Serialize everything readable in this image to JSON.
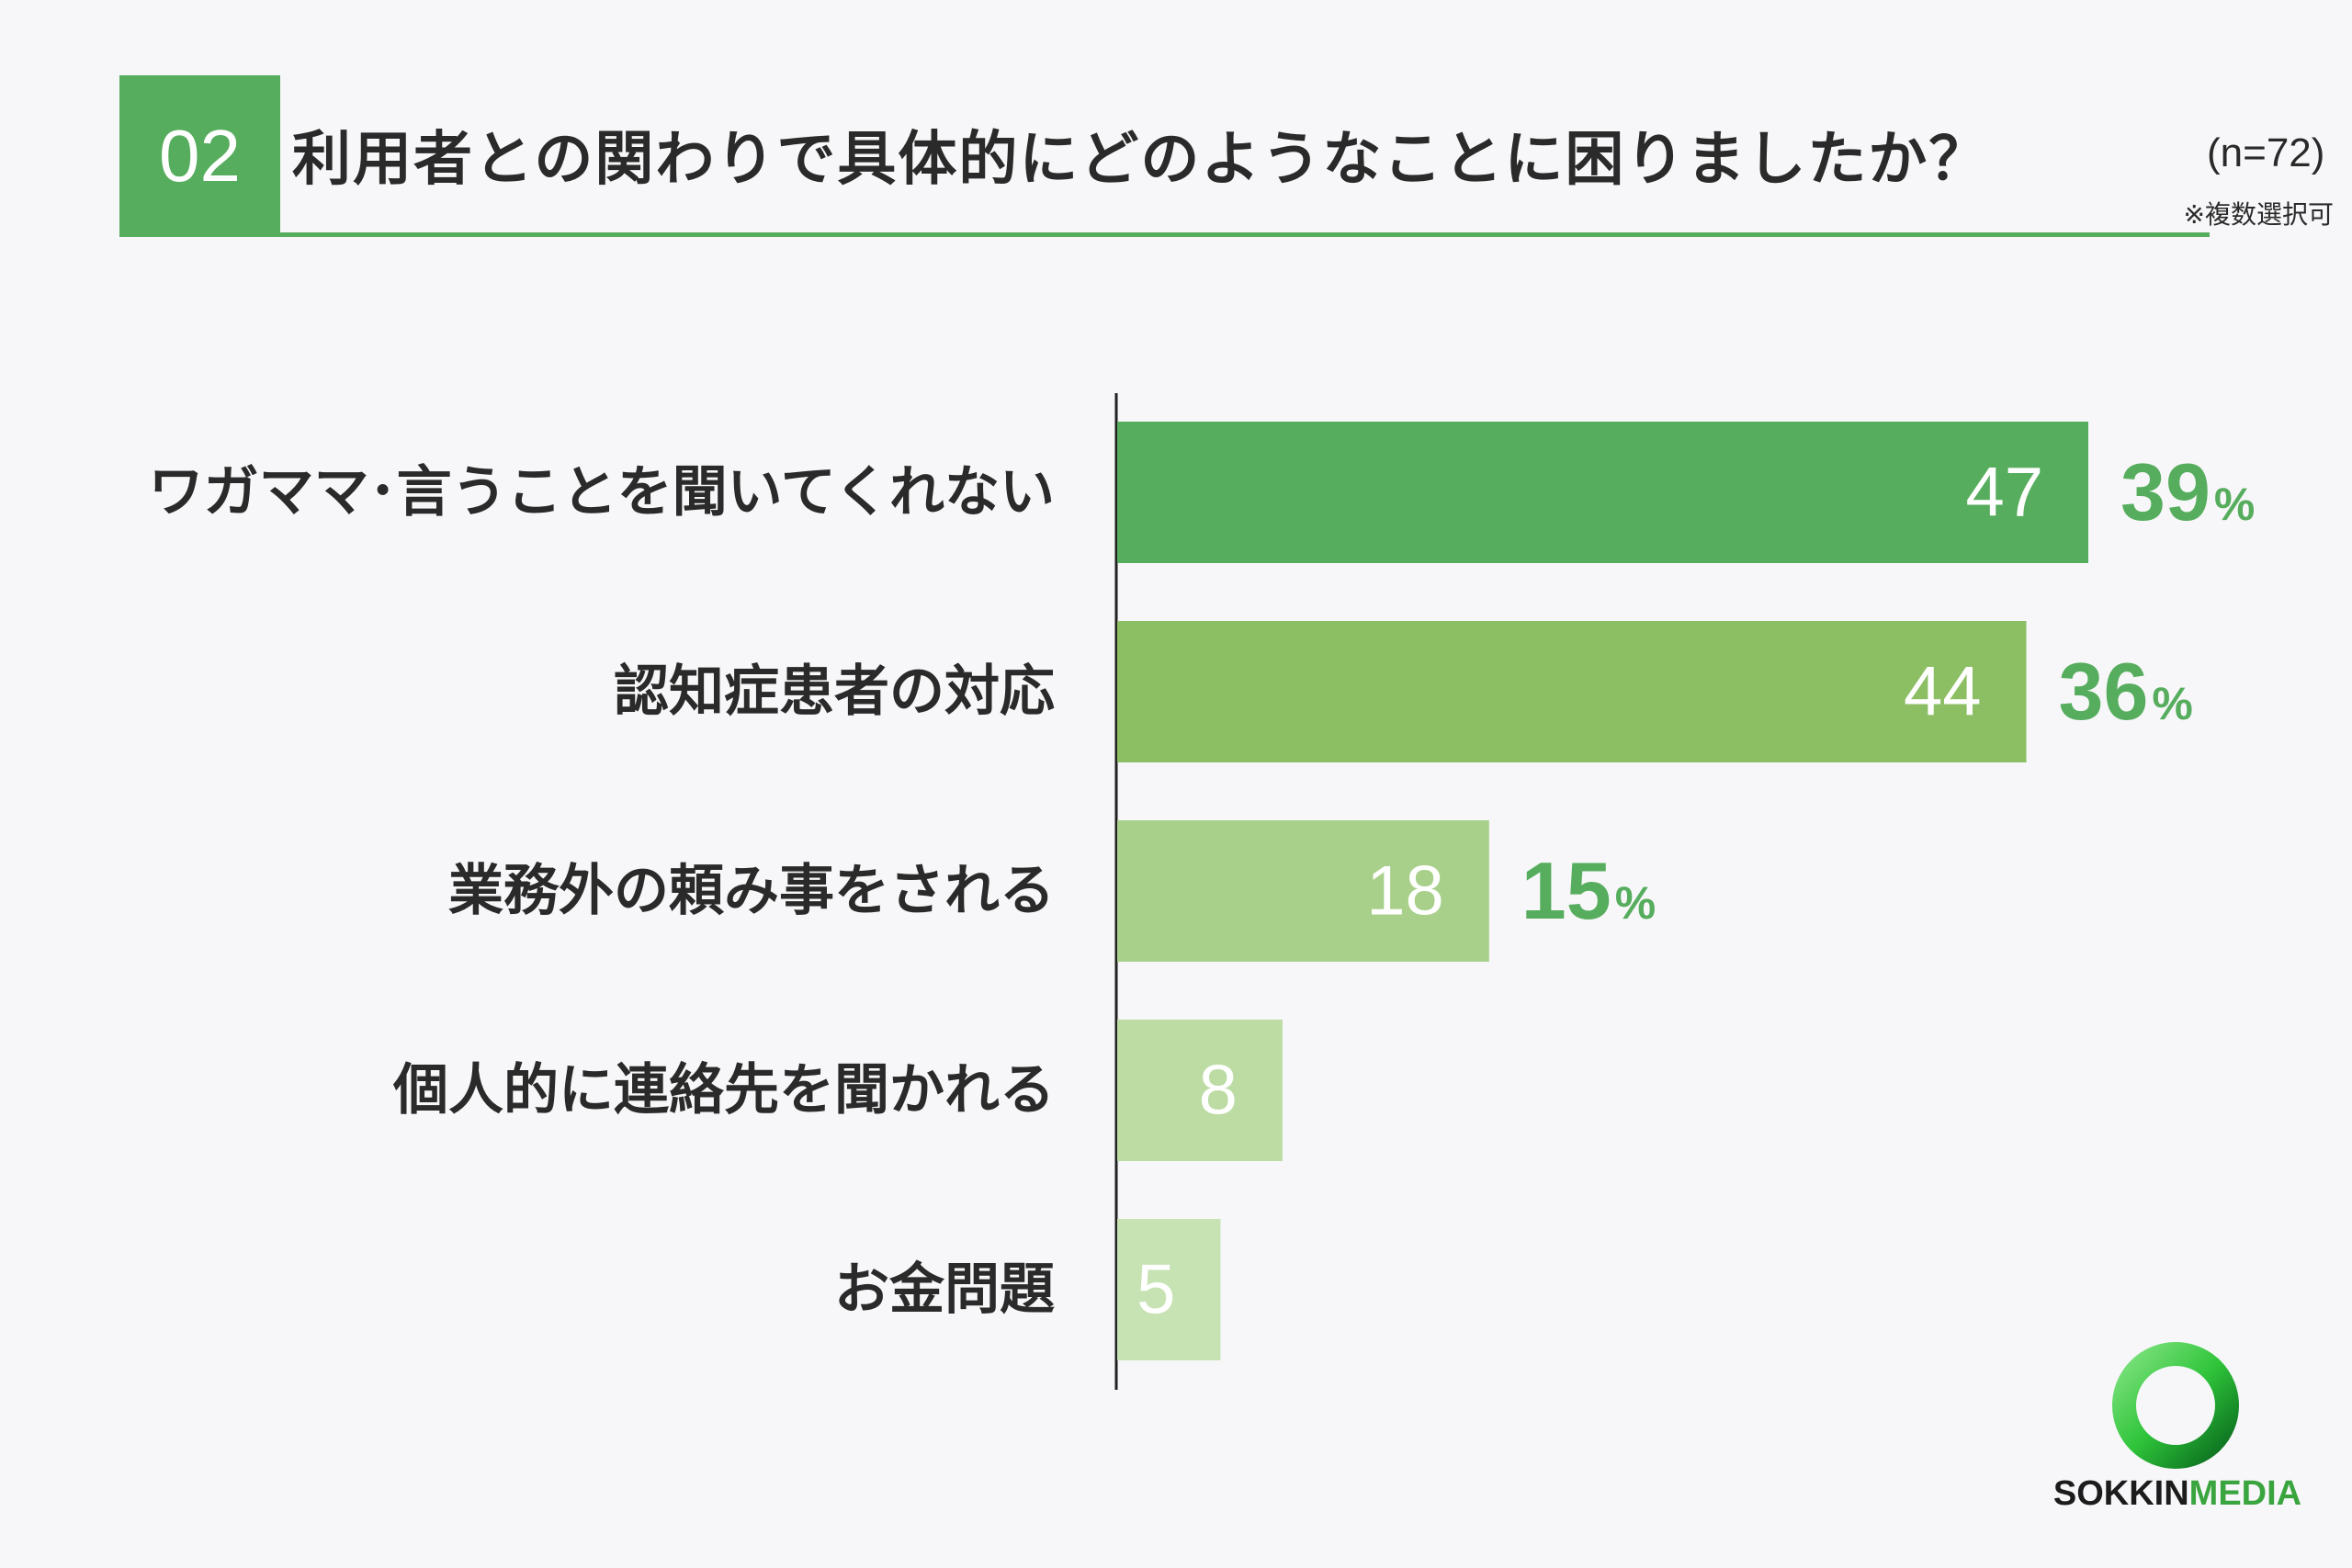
{
  "header": {
    "number": "02",
    "title": "利用者との関わりで具体的にどのようなことに困りましたか？",
    "sample": "(n=72)",
    "note": "※複数選択可"
  },
  "colors": {
    "accent": "#57ad5e",
    "bars": [
      "#57ad5e",
      "#8cbf64",
      "#a8d08b",
      "#bcdca4",
      "#c8e3b3"
    ]
  },
  "chart_data": {
    "type": "bar",
    "orientation": "horizontal",
    "categories": [
      "ワガママ･言うことを聞いてくれない",
      "認知症患者の対応",
      "業務外の頼み事をされる",
      "個人的に連絡先を聞かれる",
      "お金問題"
    ],
    "values": [
      47,
      44,
      18,
      8,
      5
    ],
    "percent_labels": [
      "39",
      "36",
      "15",
      "",
      ""
    ],
    "percent_unit": "%",
    "xlim": [
      0,
      47
    ],
    "grid": false
  },
  "logo": {
    "part1": "SOKKIN",
    "part2": "MEDIA"
  }
}
